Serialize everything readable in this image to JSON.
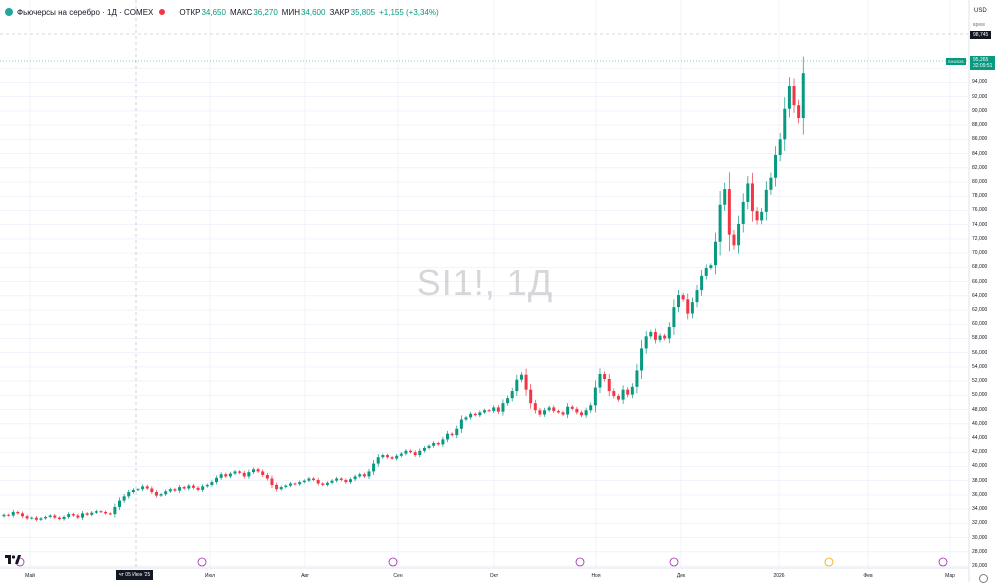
{
  "legend": {
    "title": "Фьючерсы на серебро · 1Д · COMEX",
    "open_label": "ОТКР",
    "open_value": "34,650",
    "high_label": "МАКС",
    "high_value": "36,270",
    "low_label": "МИН",
    "low_value": "34,600",
    "close_label": "ЗАКР",
    "close_value": "35,805",
    "change": "+1,155 (+3,34%)"
  },
  "currency": "USD",
  "axis_mode": "врем",
  "watermark": "SI1!, 1Д",
  "price_labels": {
    "crosshair_price": "98,745",
    "current_symbol": "SIH2026",
    "current_price": "95,265",
    "countdown": "32:09:51"
  },
  "x_cursor_label": "чт 05 Июн '25",
  "colors": {
    "up": "#089981",
    "down": "#f23645",
    "grid": "#f0f3fa"
  },
  "chart_data": {
    "type": "candlestick",
    "title": "Фьючерсы на серебро · 1Д · COMEX",
    "ylim": [
      26000,
      98000
    ],
    "y_ticks": [
      96000,
      94000,
      92000,
      90000,
      88000,
      86000,
      84000,
      82000,
      80000,
      78000,
      76000,
      74000,
      72000,
      70000,
      68000,
      66000,
      64000,
      62000,
      60000,
      58000,
      56000,
      54000,
      52000,
      50000,
      48000,
      46000,
      44000,
      42000,
      40000,
      38000,
      36000,
      34000,
      32000,
      30000,
      28000,
      26000
    ],
    "x_ticks": [
      "Май",
      "Июл",
      "Авг",
      "Сен",
      "Окт",
      "Ноя",
      "Дек",
      "2026",
      "Фев",
      "Мар"
    ],
    "close_values": [
      33.2,
      33.1,
      33.6,
      33.4,
      33.0,
      32.7,
      32.8,
      32.5,
      32.7,
      32.9,
      33.1,
      32.8,
      32.6,
      32.9,
      33.3,
      33.1,
      32.8,
      33.4,
      33.2,
      33.5,
      33.7,
      33.6,
      33.4,
      33.3,
      34.3,
      35.2,
      35.8,
      36.4,
      36.7,
      36.8,
      37.2,
      36.9,
      36.4,
      35.9,
      36.1,
      36.5,
      36.8,
      36.6,
      37.1,
      36.9,
      37.3,
      37.0,
      36.7,
      37.2,
      37.4,
      37.8,
      38.4,
      38.9,
      38.6,
      39.0,
      39.3,
      39.1,
      38.6,
      39.2,
      39.6,
      39.3,
      38.8,
      38.3,
      37.4,
      36.8,
      37.1,
      37.3,
      37.6,
      37.5,
      37.8,
      38.0,
      38.3,
      38.1,
      37.6,
      37.4,
      37.7,
      38.0,
      38.3,
      38.1,
      37.8,
      38.2,
      38.6,
      38.9,
      38.6,
      39.3,
      40.4,
      41.3,
      41.6,
      41.3,
      41.1,
      41.5,
      41.8,
      42.2,
      42.0,
      41.6,
      42.2,
      42.6,
      42.9,
      43.3,
      43.1,
      43.8,
      44.6,
      44.4,
      45.3,
      46.6,
      46.9,
      47.4,
      47.2,
      47.6,
      47.9,
      47.8,
      48.3,
      47.7,
      48.9,
      49.6,
      50.6,
      52.2,
      52.9,
      50.8,
      48.9,
      47.9,
      47.3,
      47.9,
      48.3,
      47.8,
      47.6,
      47.3,
      48.4,
      48.1,
      47.6,
      47.2,
      47.9,
      48.6,
      51.1,
      53.0,
      52.3,
      50.6,
      49.9,
      49.4,
      50.8,
      50.1,
      51.2,
      53.5,
      56.6,
      58.3,
      58.9,
      57.8,
      58.4,
      58.0,
      59.6,
      62.4,
      64.1,
      63.5,
      61.5,
      63.1,
      64.8,
      66.8,
      67.9,
      68.3,
      71.6,
      76.8,
      79.0,
      72.6,
      71.1,
      74.1,
      77.2,
      79.8,
      75.9,
      74.6,
      75.8,
      78.9,
      80.6,
      83.8,
      86.0,
      90.3,
      93.5,
      90.8,
      89.0,
      95.3
    ],
    "xlabel": "",
    "ylabel": ""
  }
}
